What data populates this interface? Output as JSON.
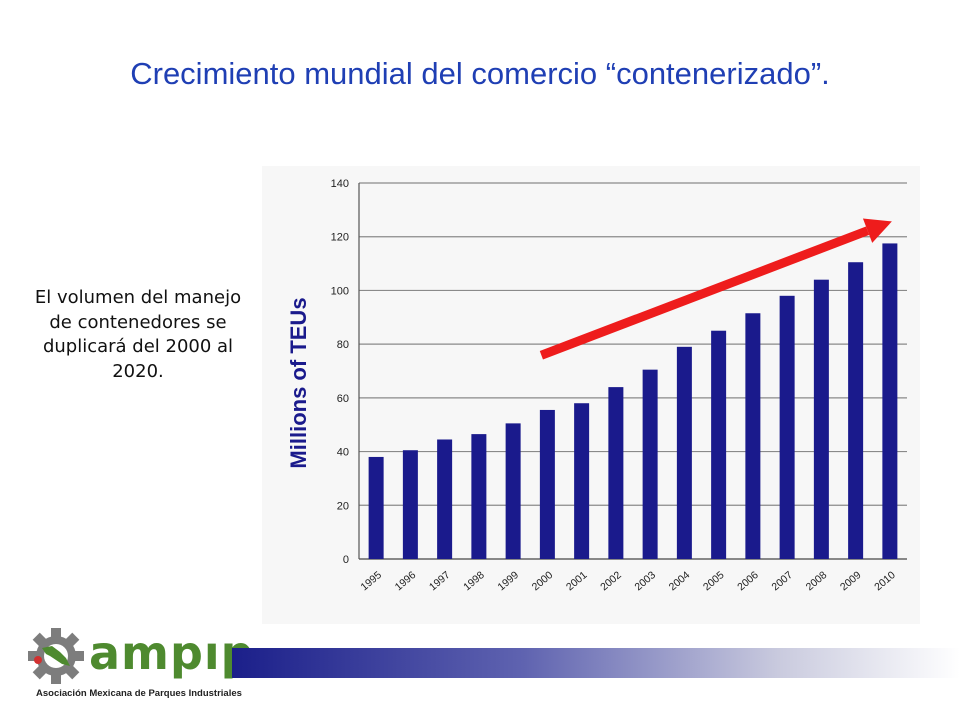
{
  "title": "Crecimiento mundial del comercio “contenerizado”.",
  "side_text": "El volumen del manejo de contenedores  se duplicará del 2000 al 2020.",
  "logo": {
    "word": "ampıp",
    "subtitle": "Asociación Mexicana de Parques Industriales"
  },
  "colors": {
    "title": "#1f3fb4",
    "bar": "#1a1a8c",
    "ylabel": "#1a1a8c",
    "arrow": "#ee1c1c",
    "logo_green": "#4e8a2f",
    "logo_gray": "#7d7d7d"
  },
  "chart_data": {
    "type": "bar",
    "categories": [
      "1995",
      "1996",
      "1997",
      "1998",
      "1999",
      "2000",
      "2001",
      "2002",
      "2003",
      "2004",
      "2005",
      "2006",
      "2007",
      "2008",
      "2009",
      "2010"
    ],
    "values": [
      38,
      40.5,
      44.5,
      46.5,
      50.5,
      55.5,
      58,
      64,
      70.5,
      79,
      85,
      91.5,
      98,
      104,
      110.5,
      117.5
    ],
    "ylabel": "Millions of TEUs",
    "xlabel": "",
    "ylim": [
      0,
      140
    ],
    "yticks": [
      0,
      20,
      40,
      60,
      80,
      100,
      120,
      140
    ],
    "grid": true,
    "annotation": "red upward trend arrow from 2000 to 2010"
  }
}
